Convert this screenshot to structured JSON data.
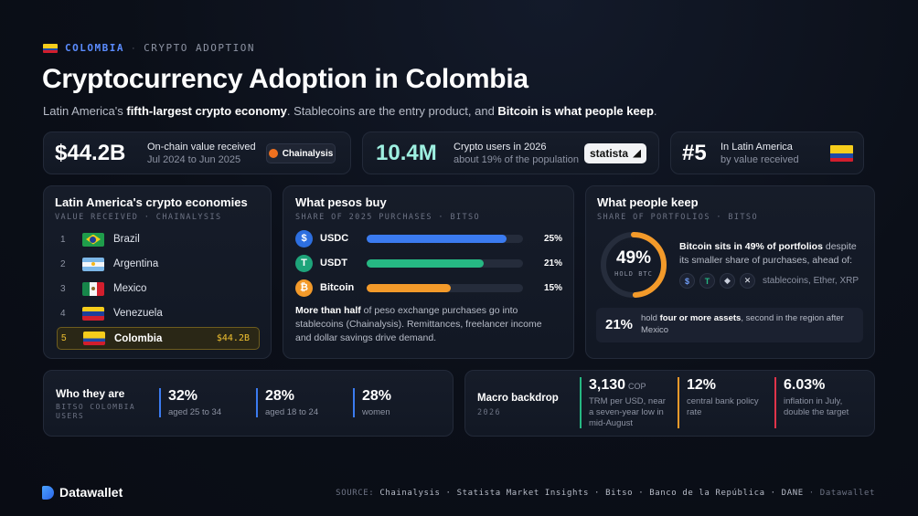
{
  "header": {
    "country": "COLOMBIA",
    "separator": "·",
    "topic": "CRYPTO ADOPTION",
    "title": "Cryptocurrency Adoption in Colombia",
    "subtitle_1": "Latin America's ",
    "subtitle_b1": "fifth-largest crypto economy",
    "subtitle_2": ". Stablecoins are the entry product, and ",
    "subtitle_b2": "Bitcoin is what people keep",
    "subtitle_3": "."
  },
  "kpis": {
    "onchain": {
      "value": "$44.2B",
      "label": "On-chain value received",
      "sub": "Jul 2024 to Jun 2025",
      "badge": "Chainalysis"
    },
    "users": {
      "value": "10.4M",
      "label": "Crypto users in 2026",
      "sub": "about 19% of the population",
      "badge": "statista"
    },
    "rank": {
      "value": "#5",
      "label": "In Latin America",
      "sub": "by value received"
    }
  },
  "ranking": {
    "title": "Latin America's crypto economies",
    "eyebrow": "VALUE RECEIVED · CHAINALYSIS",
    "rows": [
      {
        "num": "1",
        "name": "Brazil"
      },
      {
        "num": "2",
        "name": "Argentina"
      },
      {
        "num": "3",
        "name": "Mexico"
      },
      {
        "num": "4",
        "name": "Venezuela"
      },
      {
        "num": "5",
        "name": "Colombia",
        "value": "$44.2B"
      }
    ]
  },
  "pesos": {
    "title": "What pesos buy",
    "eyebrow": "SHARE OF 2025 PURCHASES · BITSO",
    "note_b": "More than half",
    "note": " of peso exchange purchases go into stablecoins (Chainalysis). Remittances, freelancer income and dollar savings drive demand."
  },
  "chart_data": {
    "type": "bar",
    "categories": [
      "USDC",
      "USDT",
      "Bitcoin"
    ],
    "values": [
      25,
      21,
      15
    ],
    "labels": [
      "25%",
      "21%",
      "15%"
    ],
    "colors": [
      "#3b7bf0",
      "#26b883",
      "#f39a2a"
    ],
    "max": 28
  },
  "keep": {
    "title": "What people keep",
    "eyebrow": "SHARE OF PORTFOLIOS · BITSO",
    "ring_value": "49%",
    "ring_label": "HOLD BTC",
    "ring_fraction": 0.49,
    "text_1": "Bitcoin sits in 49% of portfolios",
    "text_2": " despite its smaller share of purchases, ahead of:",
    "others": "stablecoins, Ether, XRP",
    "multi_value": "21%",
    "multi_1": "hold ",
    "multi_b": "four or more assets",
    "multi_2": ", second in the region after Mexico"
  },
  "who": {
    "title": "Who they are",
    "eyebrow": "BITSO COLOMBIA USERS",
    "stats": [
      {
        "value": "32%",
        "desc": "aged 25 to 34",
        "color": "#3b7bf0"
      },
      {
        "value": "28%",
        "desc": "aged 18 to 24",
        "color": "#3b7bf0"
      },
      {
        "value": "28%",
        "desc": "women",
        "color": "#3b7bf0"
      }
    ]
  },
  "macro": {
    "title": "Macro backdrop",
    "eyebrow": "2026",
    "stats": [
      {
        "value": "3,130",
        "unit": "COP",
        "desc": "TRM per USD, near a seven-year low in mid-August",
        "color": "#26b883"
      },
      {
        "value": "12%",
        "unit": "",
        "desc": "central bank policy rate",
        "color": "#f39a2a"
      },
      {
        "value": "6.03%",
        "unit": "",
        "desc": "inflation in July, double the target",
        "color": "#e0344a"
      }
    ]
  },
  "footer": {
    "brand": "Datawallet",
    "source_label": "SOURCE: ",
    "sources": "Chainalysis · Statista Market Insights · Bitso · Banco de la República · DANE",
    "credit": " · Datawallet"
  }
}
